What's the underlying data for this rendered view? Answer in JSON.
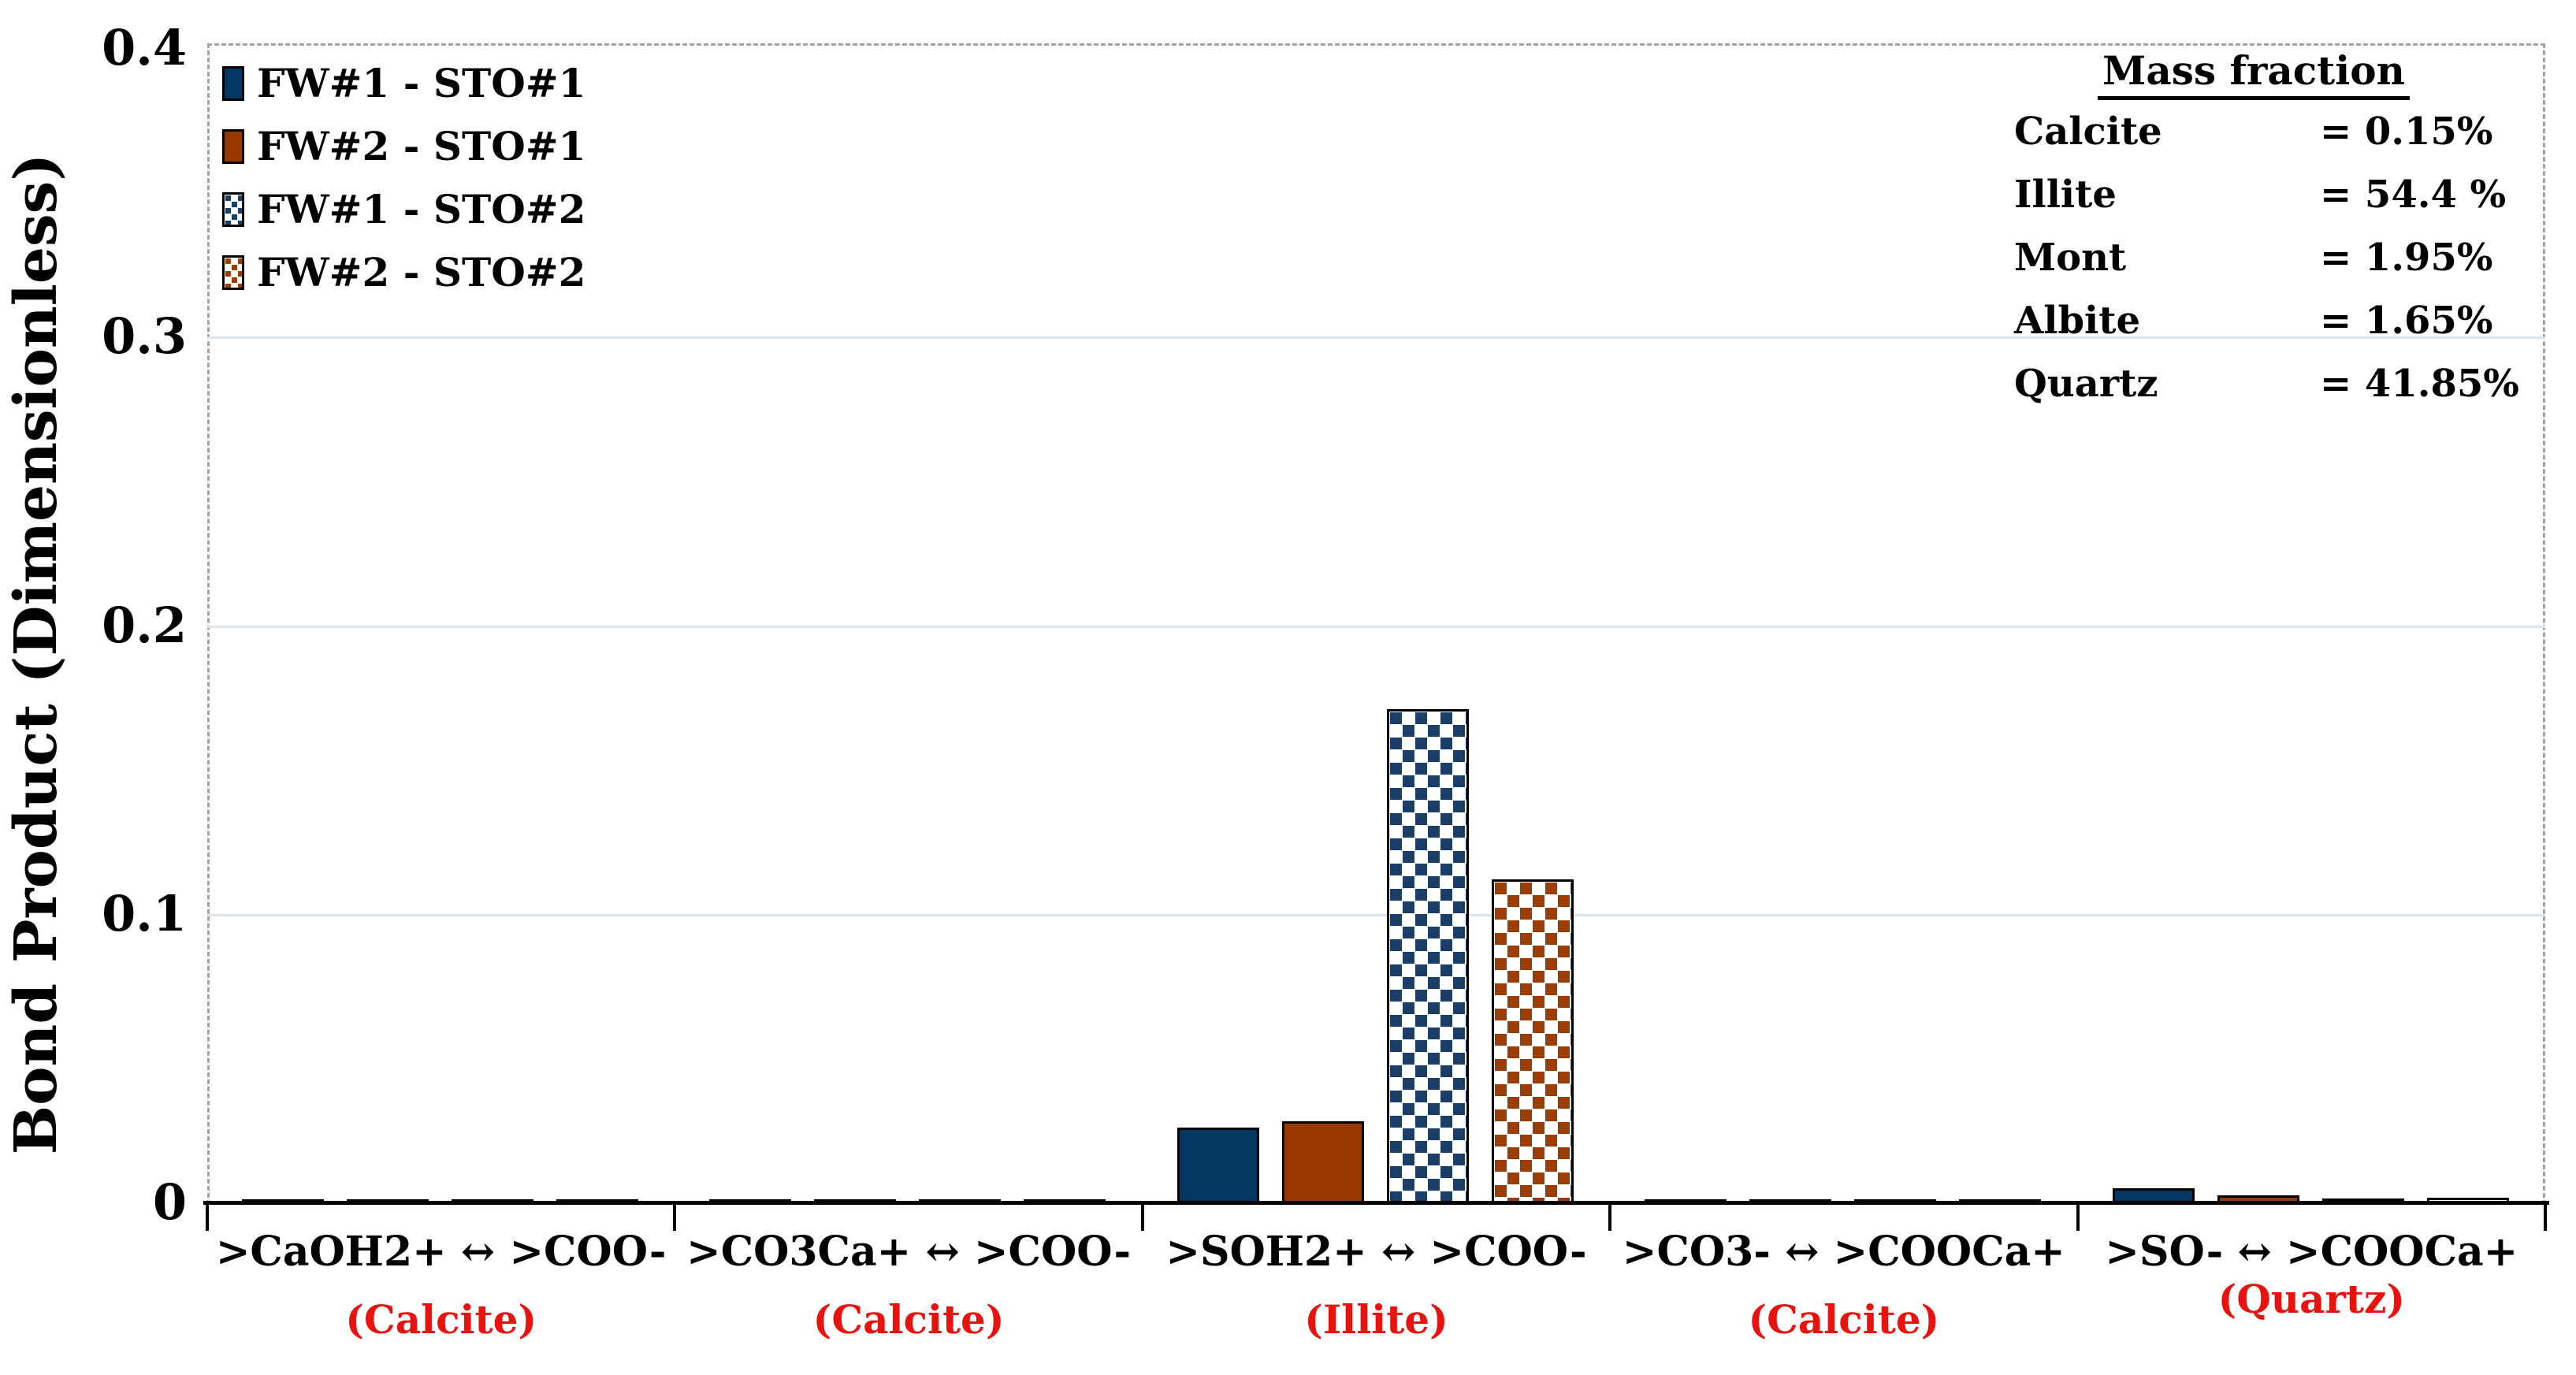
{
  "chart_data": {
    "type": "bar",
    "title": "",
    "xlabel": "",
    "ylabel": "Bond Product (Dimensionless)",
    "ylim": [
      0,
      0.4
    ],
    "yticks": [
      0,
      0.1,
      0.2,
      0.3,
      0.4
    ],
    "ytick_labels": [
      "0",
      "0.1",
      "0.2",
      "0.3",
      "0.4"
    ],
    "grid": "horizontal-light-gray",
    "legend_position": "top-left-inside",
    "plot_border_style": "dashed-gray",
    "categories": [
      {
        "reaction": ">CaOH2+  ↔ >COO-",
        "mineral": "(Calcite)",
        "mineral_dy": 0
      },
      {
        "reaction": ">CO3Ca+  ↔ >COO-",
        "mineral": "(Calcite)",
        "mineral_dy": 0
      },
      {
        "reaction": ">SOH2+  ↔ >COO-",
        "mineral": "(Illite)",
        "mineral_dy": 0
      },
      {
        "reaction": ">CO3-  ↔ >COOCa+",
        "mineral": "(Calcite)",
        "mineral_dy": 0
      },
      {
        "reaction": ">SO-  ↔ >COOCa+",
        "mineral": "(Quartz)",
        "mineral_dy": -26
      }
    ],
    "series": [
      {
        "name": "FW#1 - STO#1",
        "style": "solid",
        "color": "#033663",
        "pattern_color": "#033663",
        "values": [
          0.0012,
          0.0012,
          0.026,
          0.0012,
          0.005
        ]
      },
      {
        "name": "FW#2 - STO#1",
        "style": "solid",
        "color": "#993900",
        "pattern_color": "#993900",
        "values": [
          0.0012,
          0.0012,
          0.028,
          0.0012,
          0.0025
        ]
      },
      {
        "name": "FW#1 - STO#2",
        "style": "checkered",
        "color": "#ffffff",
        "pattern_color": "#1a3e66",
        "values": [
          0.001,
          0.001,
          0.171,
          0.001,
          0.0015
        ]
      },
      {
        "name": "FW#2 - STO#2",
        "style": "checkered",
        "color": "#ffffff",
        "pattern_color": "#9c3c03",
        "values": [
          0.001,
          0.001,
          0.112,
          0.001,
          0.0017
        ]
      }
    ]
  },
  "annotation_box": {
    "title": "Mass fraction",
    "rows": [
      {
        "label": "Calcite",
        "value": "= 0.15%"
      },
      {
        "label": "Illite",
        "value": "= 54.4 %"
      },
      {
        "label": "Mont",
        "value": "= 1.95%"
      },
      {
        "label": "Albite",
        "value": "= 1.65%"
      },
      {
        "label": "Quartz",
        "value": "= 41.85%"
      }
    ]
  },
  "colors": {
    "mineral_label_red": "#e8120e",
    "gridline": "#dde4ea",
    "plot_border": "#a3a3a3",
    "axis": "#000000",
    "navy": "#033663",
    "rust": "#993900"
  }
}
